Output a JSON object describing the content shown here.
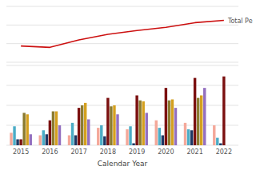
{
  "chart_data": [
    {
      "type": "line",
      "categories": [
        "2015",
        "2016",
        "2017",
        "2018",
        "2019",
        "2020",
        "2021",
        "2022"
      ],
      "series": [
        {
          "name": "Total Pe",
          "color": "#CC1010",
          "values": [
            3.5,
            3.2,
            4.8,
            6.0,
            6.8,
            7.5,
            8.5,
            9.0
          ]
        }
      ],
      "ylim": [
        0,
        12
      ],
      "yticks": [
        0,
        4,
        8,
        12
      ],
      "grid": true,
      "tick_labels": false
    },
    {
      "type": "bar",
      "xlabel": "Calendar Year",
      "categories": [
        "2015",
        "2016",
        "2017",
        "2018",
        "2019",
        "2020",
        "2021",
        "2022"
      ],
      "series": [
        {
          "color": "#F4A89A",
          "values": [
            2.5,
            2.0,
            2.0,
            3.5,
            3.2,
            5.0,
            4.5,
            4.0
          ]
        },
        {
          "color": "#4BACC6",
          "values": [
            3.8,
            3.0,
            4.5,
            4.0,
            3.8,
            3.5,
            3.2,
            1.5
          ]
        },
        {
          "color": "#1F3864",
          "values": [
            1.2,
            2.2,
            2.0,
            1.8,
            0.4,
            2.0,
            3.0,
            0.4
          ]
        },
        {
          "color": "#7B1010",
          "values": [
            1.2,
            5.0,
            7.5,
            9.5,
            10.0,
            11.5,
            13.5,
            13.8
          ]
        },
        {
          "color": "#8B7B30",
          "values": [
            6.5,
            6.8,
            8.0,
            7.8,
            9.0,
            9.0,
            9.5,
            0.0
          ]
        },
        {
          "color": "#D4A020",
          "values": [
            6.2,
            6.8,
            8.5,
            8.0,
            8.8,
            9.2,
            10.0,
            0.0
          ]
        },
        {
          "color": "#9370C0",
          "values": [
            2.2,
            4.0,
            5.2,
            6.2,
            6.5,
            7.5,
            11.5,
            0.0
          ]
        }
      ],
      "ylim": [
        0,
        16
      ],
      "yticks": [
        0,
        4,
        8,
        12,
        16
      ],
      "grid": true,
      "tick_labels": "x"
    }
  ]
}
